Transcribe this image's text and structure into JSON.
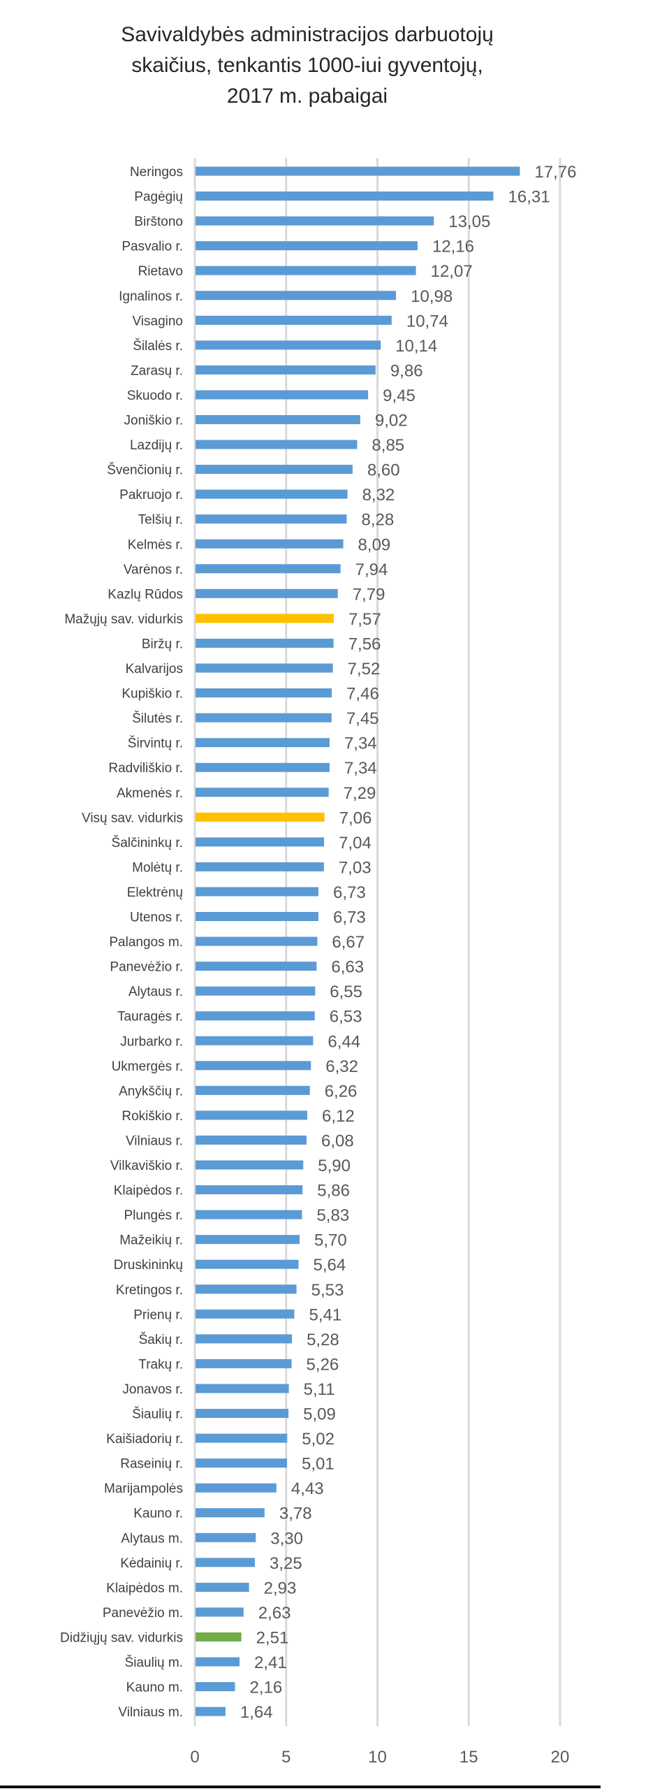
{
  "chart_data": {
    "type": "bar",
    "orientation": "horizontal",
    "title": [
      "Savivaldybės administracijos darbuotojų",
      "skaičius, tenkantis 1000-iui gyventojų,",
      "2017 m. pabaigai"
    ],
    "xlabel": "",
    "ylabel": "",
    "xlim": [
      0,
      20
    ],
    "xticks": [
      "0",
      "5",
      "10",
      "15",
      "20"
    ],
    "xtick_values": [
      0,
      5,
      10,
      15,
      20
    ],
    "grid": true,
    "colors": {
      "default": "#5B9BD5",
      "small_avg": "#FFC000",
      "all_avg": "#FFC000",
      "big_avg": "#70AD47",
      "grid": "#D9D9D9"
    },
    "categories": [
      "Neringos",
      "Pagėgių",
      "Birštono",
      "Pasvalio r.",
      "Rietavo",
      "Ignalinos r.",
      "Visagino",
      "Šilalės r.",
      "Zarasų r.",
      "Skuodo r.",
      "Joniškio r.",
      "Lazdijų r.",
      "Švenčionių r.",
      "Pakruojo r.",
      "Telšių r.",
      "Kelmės r.",
      "Varėnos r.",
      "Kazlų Rūdos",
      "Mažųjų sav. vidurkis",
      "Biržų r.",
      "Kalvarijos",
      "Kupiškio r.",
      "Šilutės r.",
      "Širvintų r.",
      "Radviliškio r.",
      "Akmenės r.",
      "Visų sav. vidurkis",
      "Šalčininkų r.",
      "Molėtų r.",
      "Elektrėnų",
      "Utenos r.",
      "Palangos m.",
      "Panevėžio r.",
      "Alytaus r.",
      "Tauragės r.",
      "Jurbarko r.",
      "Ukmergės r.",
      "Anykščių r.",
      "Rokiškio r.",
      "Vilniaus r.",
      "Vilkaviškio r.",
      "Klaipėdos r.",
      "Plungės r.",
      "Mažeikių r.",
      "Druskininkų",
      "Kretingos r.",
      "Prienų r.",
      "Šakių r.",
      "Trakų r.",
      "Jonavos r.",
      "Šiaulių r.",
      "Kaišiadorių r.",
      "Raseinių r.",
      "Marijampolės",
      "Kauno r.",
      "Alytaus m.",
      "Kėdainių r.",
      "Klaipėdos m.",
      "Panevėžio m.",
      "Didžiųjų sav. vidurkis",
      "Šiaulių m.",
      "Kauno m.",
      "Vilniaus m."
    ],
    "values": [
      17.76,
      16.31,
      13.05,
      12.16,
      12.07,
      10.98,
      10.74,
      10.14,
      9.86,
      9.45,
      9.02,
      8.85,
      8.6,
      8.32,
      8.28,
      8.09,
      7.94,
      7.79,
      7.57,
      7.56,
      7.52,
      7.46,
      7.45,
      7.34,
      7.34,
      7.29,
      7.06,
      7.04,
      7.03,
      6.73,
      6.73,
      6.67,
      6.63,
      6.55,
      6.53,
      6.44,
      6.32,
      6.26,
      6.12,
      6.08,
      5.9,
      5.86,
      5.83,
      5.7,
      5.64,
      5.53,
      5.41,
      5.28,
      5.26,
      5.11,
      5.09,
      5.02,
      5.01,
      4.43,
      3.78,
      3.3,
      3.25,
      2.93,
      2.63,
      2.51,
      2.41,
      2.16,
      1.64
    ],
    "value_labels": [
      "17,76",
      "16,31",
      "13,05",
      "12,16",
      "12,07",
      "10,98",
      "10,74",
      "10,14",
      "9,86",
      "9,45",
      "9,02",
      "8,85",
      "8,60",
      "8,32",
      "8,28",
      "8,09",
      "7,94",
      "7,79",
      "7,57",
      "7,56",
      "7,52",
      "7,46",
      "7,45",
      "7,34",
      "7,34",
      "7,29",
      "7,06",
      "7,04",
      "7,03",
      "6,73",
      "6,73",
      "6,67",
      "6,63",
      "6,55",
      "6,53",
      "6,44",
      "6,32",
      "6,26",
      "6,12",
      "6,08",
      "5,90",
      "5,86",
      "5,83",
      "5,70",
      "5,64",
      "5,53",
      "5,41",
      "5,28",
      "5,26",
      "5,11",
      "5,09",
      "5,02",
      "5,01",
      "4,43",
      "3,78",
      "3,30",
      "3,25",
      "2,93",
      "2,63",
      "2,51",
      "2,41",
      "2,16",
      "1,64"
    ],
    "highlight": {
      "Mažųjų sav. vidurkis": "small_avg",
      "Visų sav. vidurkis": "all_avg",
      "Didžiųjų sav. vidurkis": "big_avg"
    }
  }
}
